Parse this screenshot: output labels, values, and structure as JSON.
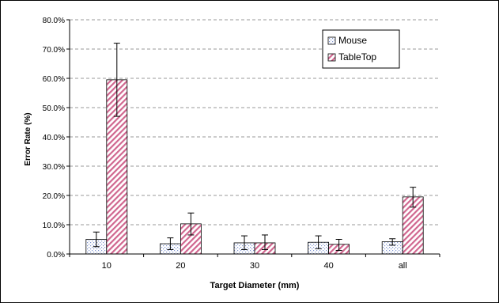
{
  "chart_data": {
    "type": "bar",
    "title": "",
    "xlabel": "Target Diameter (mm)",
    "ylabel": "Error Rate (%)",
    "categories": [
      "10",
      "20",
      "30",
      "40",
      "all"
    ],
    "ylim": [
      0,
      0.8
    ],
    "yticks": [
      0.0,
      0.1,
      0.2,
      0.3,
      0.4,
      0.5,
      0.6,
      0.7,
      0.8
    ],
    "ytick_labels": [
      "0.0%",
      "10.0%",
      "20.0%",
      "30.0%",
      "40.0%",
      "50.0%",
      "60.0%",
      "70.0%",
      "80.0%"
    ],
    "grid": "horizontal dashed",
    "legend_position": "top-right",
    "series": [
      {
        "name": "Mouse",
        "pattern": "dots",
        "pattern_color": "#8aa0d8",
        "values": [
          0.05,
          0.035,
          0.038,
          0.04,
          0.042
        ],
        "err_low": [
          0.025,
          0.015,
          0.015,
          0.018,
          0.03
        ],
        "err_high": [
          0.075,
          0.055,
          0.062,
          0.062,
          0.052
        ]
      },
      {
        "name": "TableTop",
        "pattern": "diagonal-stripes",
        "pattern_color": "#d8709a",
        "values": [
          0.595,
          0.103,
          0.038,
          0.033,
          0.195
        ],
        "err_low": [
          0.47,
          0.065,
          0.015,
          0.012,
          0.16
        ],
        "err_high": [
          0.72,
          0.14,
          0.065,
          0.05,
          0.228
        ]
      }
    ]
  }
}
